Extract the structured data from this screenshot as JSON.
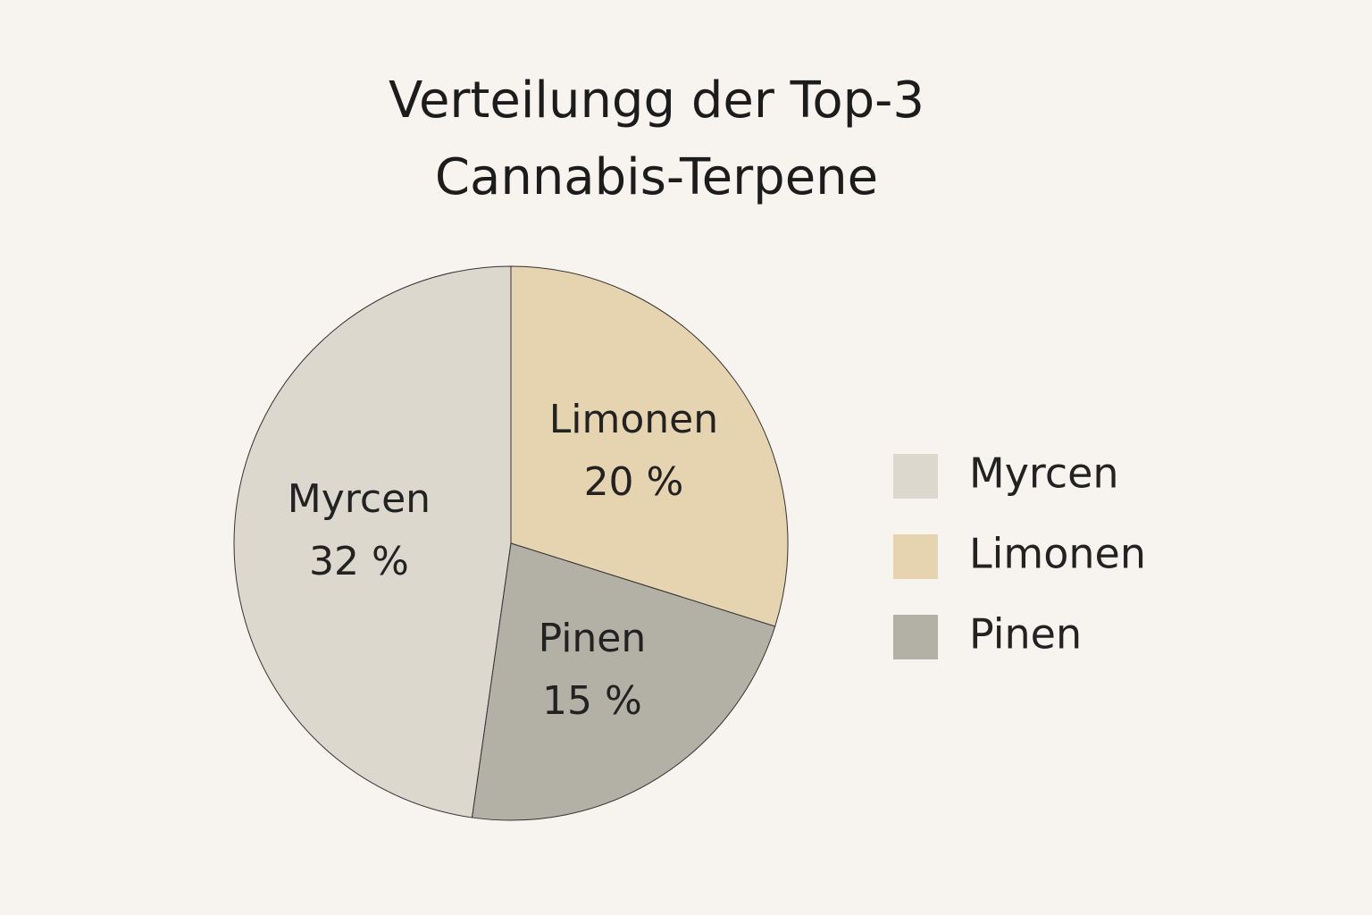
{
  "chart_data": {
    "type": "pie",
    "title": "Verteilungg der Top-3 Cannabis-Terpene",
    "categories": [
      "Myrcen",
      "Limonen",
      "Pinen"
    ],
    "values": [
      32,
      20,
      15
    ],
    "value_labels": [
      "32 %",
      "20 %",
      "15 %"
    ],
    "colors": [
      "#ddd8ce",
      "#e6d3b0",
      "#b3b0a6"
    ],
    "legend": "right"
  }
}
